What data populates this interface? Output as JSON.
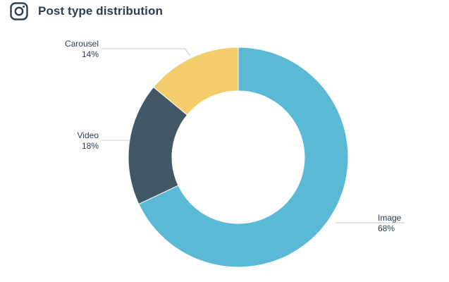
{
  "header": {
    "icon": "instagram-icon",
    "title": "Post type distribution"
  },
  "colors": {
    "Image": "#5ab9d5",
    "Video": "#435866",
    "Carousel": "#f3cd6b",
    "text": "#2c3e50",
    "leader": "#c0c6cc"
  },
  "chart_data": {
    "type": "pie",
    "title": "Post type distribution",
    "donut": true,
    "categories": [
      "Image",
      "Video",
      "Carousel"
    ],
    "values": [
      68,
      18,
      14
    ],
    "value_labels": [
      "68%",
      "18%",
      "14%"
    ],
    "legend": "none",
    "grid": false
  }
}
